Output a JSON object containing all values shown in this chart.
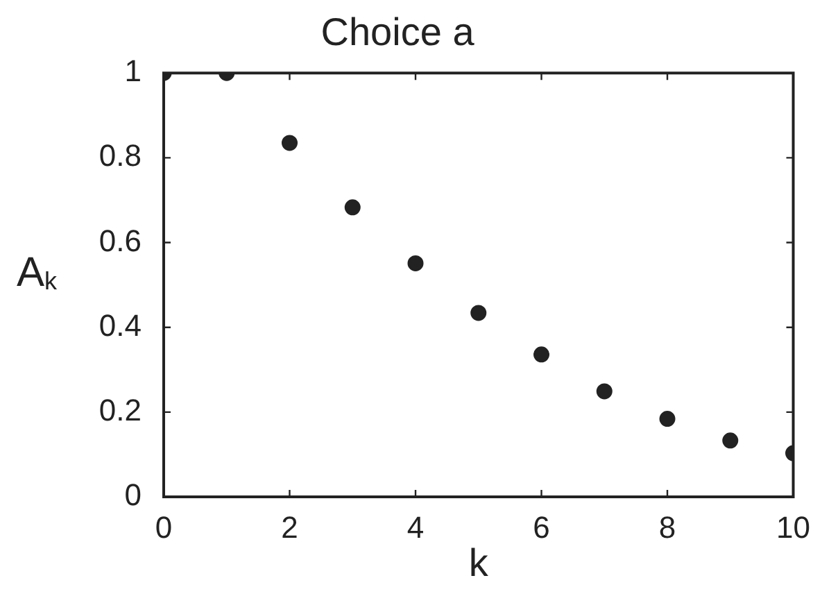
{
  "chart_data": {
    "type": "scatter",
    "title": "Choice a",
    "xlabel": "k",
    "ylabel": "A$_{k}$",
    "x": [
      0,
      1,
      2,
      3,
      4,
      5,
      6,
      7,
      8,
      9,
      10
    ],
    "series": [
      {
        "color": "#222222",
        "values": [
          1,
          1,
          0.835,
          0.683,
          0.551,
          0.434,
          0.336,
          0.249,
          0.184,
          0.133,
          0.103
        ]
      }
    ],
    "xlim": [
      0,
      10
    ],
    "xticks": [
      0,
      2,
      4,
      6,
      8,
      10
    ],
    "ylim": [
      0,
      1
    ],
    "yticks": [
      0,
      0.2,
      0.4,
      0.6,
      0.8,
      1
    ],
    "marker": "circle",
    "grid": false,
    "legend": false
  }
}
